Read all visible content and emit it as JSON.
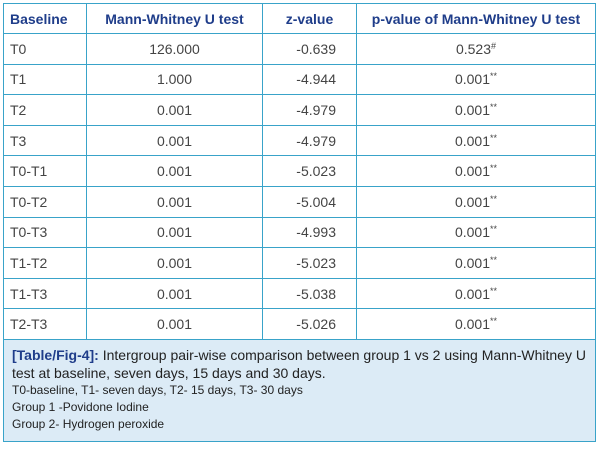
{
  "table": {
    "headers": [
      "Baseline",
      "Mann-Whitney U test",
      "z-value",
      "p-value of Mann-Whitney U test"
    ],
    "rows": [
      {
        "baseline": "T0",
        "u": "126.000",
        "z": "-0.639",
        "p": "0.523",
        "sup": "#"
      },
      {
        "baseline": "T1",
        "u": "1.000",
        "z": "-4.944",
        "p": "0.001",
        "sup": "**"
      },
      {
        "baseline": "T2",
        "u": "0.001",
        "z": "-4.979",
        "p": "0.001",
        "sup": "**"
      },
      {
        "baseline": "T3",
        "u": "0.001",
        "z": "-4.979",
        "p": "0.001",
        "sup": "**"
      },
      {
        "baseline": "T0-T1",
        "u": "0.001",
        "z": "-5.023",
        "p": "0.001",
        "sup": "**"
      },
      {
        "baseline": "T0-T2",
        "u": "0.001",
        "z": "-5.004",
        "p": "0.001",
        "sup": "**"
      },
      {
        "baseline": "T0-T3",
        "u": "0.001",
        "z": "-4.993",
        "p": "0.001",
        "sup": "**"
      },
      {
        "baseline": "T1-T2",
        "u": "0.001",
        "z": "-5.023",
        "p": "0.001",
        "sup": "**"
      },
      {
        "baseline": "T1-T3",
        "u": "0.001",
        "z": "-5.038",
        "p": "0.001",
        "sup": "**"
      },
      {
        "baseline": "T2-T3",
        "u": "0.001",
        "z": "-5.026",
        "p": "0.001",
        "sup": "**"
      }
    ]
  },
  "caption": {
    "label": "[Table/Fig-4]:",
    "text": " Intergroup pair-wise comparison between group 1 vs 2 using Mann-Whitney U test at baseline, seven days, 15 days and 30 days.",
    "notes": [
      "T0-baseline, T1- seven days, T2- 15 days, T3- 30 days",
      "Group 1 -Povidone Iodine",
      "Group 2- Hydrogen peroxide"
    ]
  },
  "colors": {
    "border": "#39a3c9",
    "header_text": "#1f3d8a",
    "caption_bg": "#dcebf6"
  }
}
